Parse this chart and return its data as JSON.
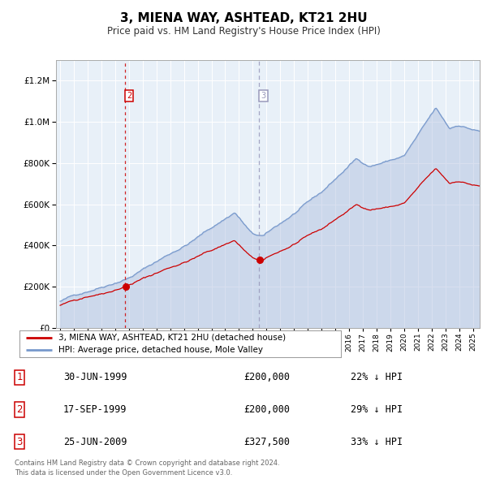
{
  "title": "3, MIENA WAY, ASHTEAD, KT21 2HU",
  "subtitle": "Price paid vs. HM Land Registry's House Price Index (HPI)",
  "legend_label_red": "3, MIENA WAY, ASHTEAD, KT21 2HU (detached house)",
  "legend_label_blue": "HPI: Average price, detached house, Mole Valley",
  "table_rows": [
    {
      "num": "1",
      "date": "30-JUN-1999",
      "price": "£200,000",
      "pct": "22% ↓ HPI"
    },
    {
      "num": "2",
      "date": "17-SEP-1999",
      "price": "£200,000",
      "pct": "29% ↓ HPI"
    },
    {
      "num": "3",
      "date": "25-JUN-2009",
      "price": "£327,500",
      "pct": "33% ↓ HPI"
    }
  ],
  "footnote1": "Contains HM Land Registry data © Crown copyright and database right 2024.",
  "footnote2": "This data is licensed under the Open Government Licence v3.0.",
  "sale2_date_num": 1999.72,
  "sale2_price": 200000,
  "sale3_date_num": 2009.48,
  "sale3_price": 327500,
  "vline2_x": 1999.72,
  "vline3_x": 2009.48,
  "ylim_max": 1300000,
  "ylim_min": 0,
  "xlim_min": 1994.7,
  "xlim_max": 2025.5,
  "red_color": "#cc0000",
  "blue_color": "#7799cc",
  "blue_fill": "#aabbdd",
  "plot_bg": "#e8f0f8",
  "grid_color": "#ffffff",
  "box2_edge": "#cc0000",
  "box3_edge": "#9999bb"
}
